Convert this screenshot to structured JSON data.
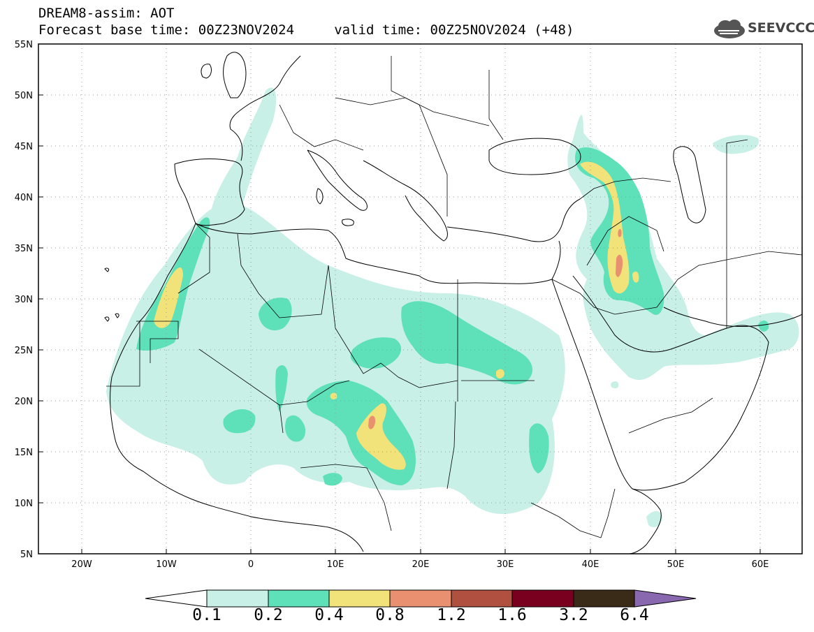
{
  "header": {
    "model_line": "DREAM8-assim: AOT",
    "time_line": "Forecast base time: 00Z23NOV2024     valid time: 00Z25NOV2024 (+48)"
  },
  "logo": {
    "text": "SEEVCCC",
    "icon": "cloud-logo-icon"
  },
  "map": {
    "lat_labels": [
      "55N",
      "50N",
      "45N",
      "40N",
      "35N",
      "30N",
      "25N",
      "20N",
      "15N",
      "10N",
      "5N"
    ],
    "lon_labels": [
      "20W",
      "10W",
      "0",
      "10E",
      "20E",
      "30E",
      "40E",
      "50E",
      "60E"
    ],
    "grid": true
  },
  "colorbar": {
    "ticks": [
      "0.1",
      "0.2",
      "0.4",
      "0.8",
      "1.2",
      "1.6",
      "3.2",
      "6.4"
    ],
    "colors": [
      "#ffffff",
      "#c8f0e6",
      "#5ee0b8",
      "#f2e27a",
      "#e89070",
      "#b05040",
      "#7a0020",
      "#3a2a18",
      "#8a68b0"
    ]
  }
}
